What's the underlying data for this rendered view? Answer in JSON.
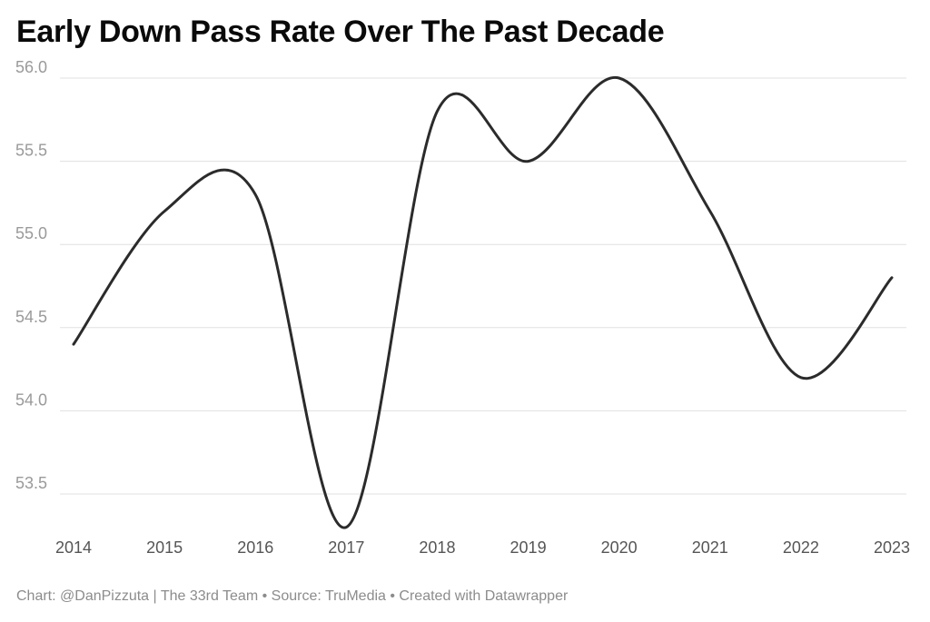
{
  "chart_data": {
    "type": "line",
    "title": "Early Down Pass Rate Over The Past Decade",
    "x": [
      "2014",
      "2015",
      "2016",
      "2017",
      "2018",
      "2019",
      "2020",
      "2021",
      "2022",
      "2023"
    ],
    "series": [
      {
        "values": [
          54.4,
          55.2,
          55.3,
          53.3,
          55.8,
          55.5,
          56.0,
          55.2,
          54.2,
          54.8
        ]
      }
    ],
    "y_ticks": [
      "53.5",
      "54.0",
      "54.5",
      "55.0",
      "55.5",
      "56.0"
    ],
    "ylim": [
      53.3,
      56.0
    ],
    "xlabel": "",
    "ylabel": "",
    "grid": true,
    "line_color": "#2b2b2b",
    "grid_color": "#e0e0e0"
  },
  "footer": {
    "credit": "Chart: @DanPizzuta | The 33rd Team • Source: TruMedia • Created with Datawrapper"
  }
}
